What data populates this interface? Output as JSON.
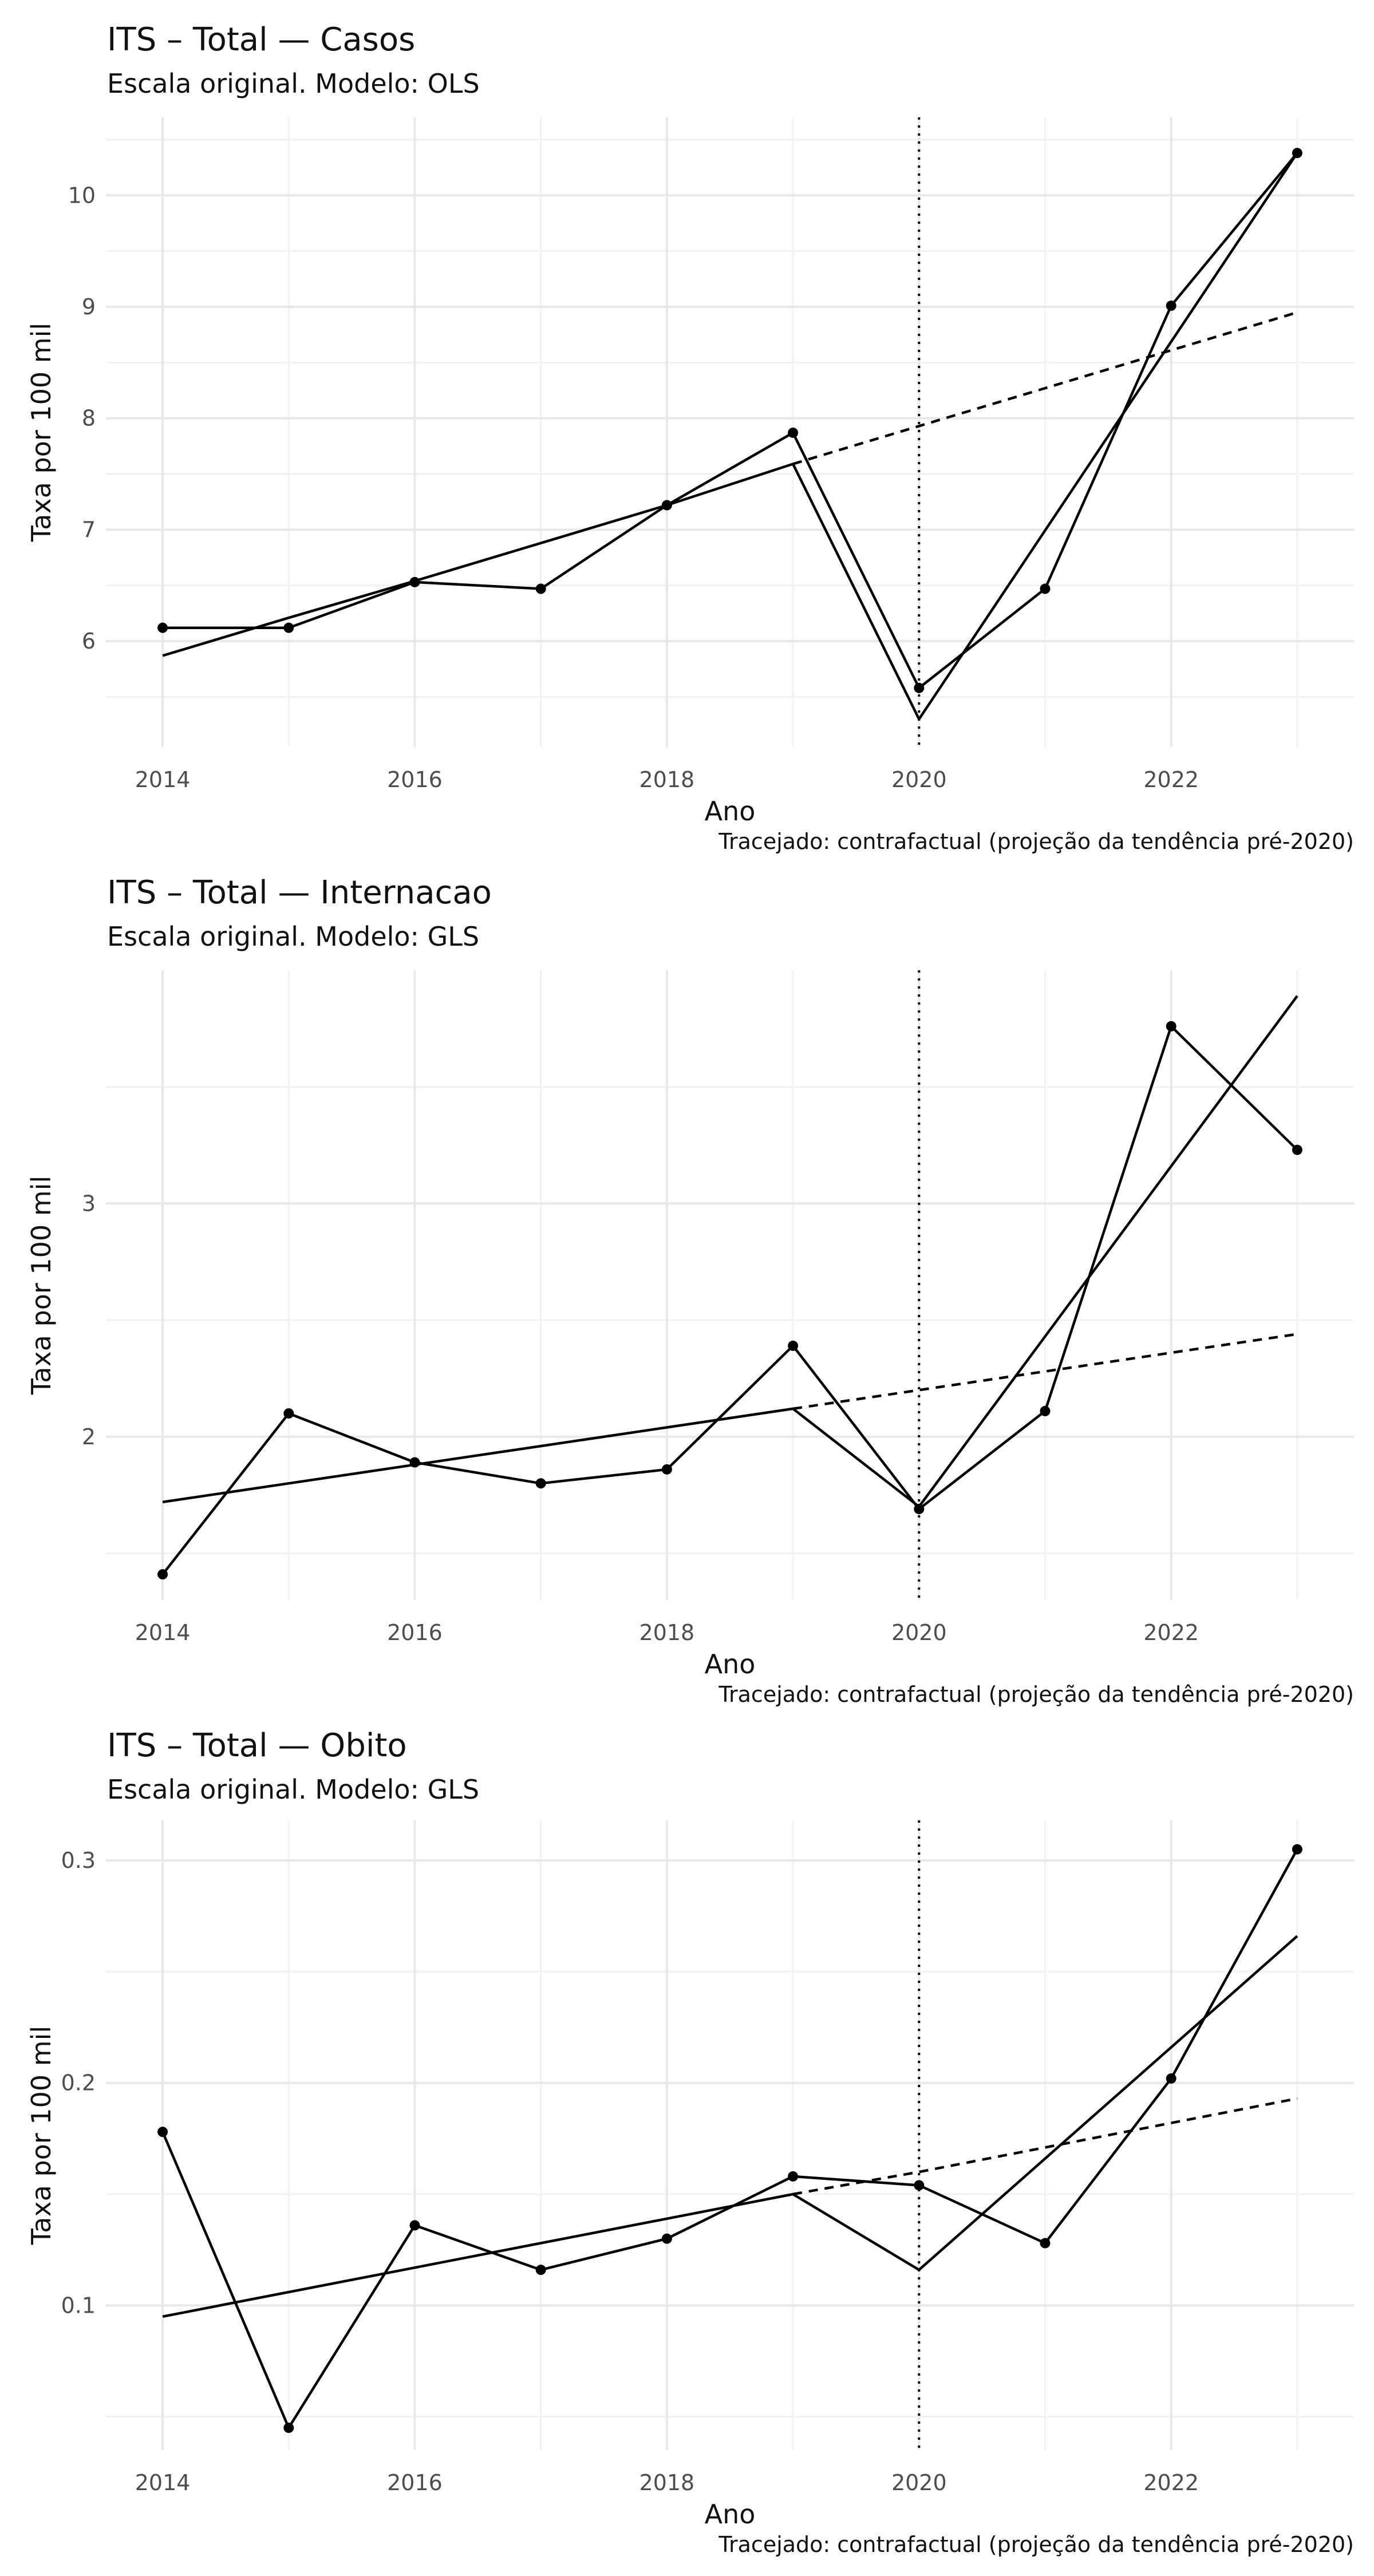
{
  "chart_data": [
    {
      "type": "line",
      "title": "ITS – Total — Casos",
      "subtitle": "Escala original. Modelo: OLS",
      "xlabel": "Ano",
      "ylabel": "Taxa por 100 mil",
      "caption": "Tracejado: contrafactual (projeção da tendência pré-2020)",
      "x": [
        2014,
        2015,
        2016,
        2017,
        2018,
        2019,
        2020,
        2021,
        2022,
        2023
      ],
      "x_ticks": [
        2014,
        2016,
        2018,
        2020,
        2022
      ],
      "y_ticks": [
        6,
        7,
        8,
        9,
        10
      ],
      "ylim": [
        5.05,
        10.7
      ],
      "xlim": [
        2013.55,
        2023.45
      ],
      "intervention_x": 2020,
      "grid": true,
      "series": [
        {
          "values": [
            6.12,
            6.12,
            6.53,
            6.47,
            7.22,
            7.87,
            5.58,
            6.47,
            9.01,
            10.38
          ],
          "markers": true
        },
        {
          "values": [
            5.87,
            6.21,
            6.54,
            6.88,
            7.22,
            7.59,
            5.3,
            null,
            null,
            10.38
          ],
          "markers": false
        },
        {
          "x": [
            2019,
            2020,
            2021,
            2022,
            2023
          ],
          "values": [
            7.59,
            7.93,
            8.27,
            8.61,
            8.95
          ],
          "style": "dashed",
          "markers": false
        }
      ]
    },
    {
      "type": "line",
      "title": "ITS – Total — Internacao",
      "subtitle": "Escala original. Modelo: GLS",
      "xlabel": "Ano",
      "ylabel": "Taxa por 100 mil",
      "caption": "Tracejado: contrafactual (projeção da tendência pré-2020)",
      "x": [
        2014,
        2015,
        2016,
        2017,
        2018,
        2019,
        2020,
        2021,
        2022,
        2023
      ],
      "x_ticks": [
        2014,
        2016,
        2018,
        2020,
        2022
      ],
      "y_ticks": [
        2,
        3
      ],
      "ylim": [
        1.3,
        4.0
      ],
      "xlim": [
        2013.55,
        2023.45
      ],
      "intervention_x": 2020,
      "grid": true,
      "series": [
        {
          "values": [
            1.41,
            2.1,
            1.89,
            1.8,
            1.86,
            2.39,
            1.69,
            2.11,
            3.76,
            3.23
          ],
          "markers": true
        },
        {
          "values": [
            1.72,
            1.8,
            1.88,
            1.96,
            2.04,
            2.12,
            1.7,
            null,
            null,
            3.89
          ],
          "markers": false
        },
        {
          "x": [
            2019,
            2020,
            2021,
            2022,
            2023
          ],
          "values": [
            2.12,
            2.2,
            2.28,
            2.36,
            2.44
          ],
          "style": "dashed",
          "markers": false
        }
      ]
    },
    {
      "type": "line",
      "title": "ITS – Total — Obito",
      "subtitle": "Escala original. Modelo: GLS",
      "xlabel": "Ano",
      "ylabel": "Taxa por 100 mil",
      "caption": "Tracejado: contrafactual (projeção da tendência pré-2020)",
      "x": [
        2014,
        2015,
        2016,
        2017,
        2018,
        2019,
        2020,
        2021,
        2022,
        2023
      ],
      "x_ticks": [
        2014,
        2016,
        2018,
        2020,
        2022
      ],
      "y_ticks": [
        0.1,
        0.2,
        0.3
      ],
      "ylim": [
        0.035,
        0.318
      ],
      "xlim": [
        2013.55,
        2023.45
      ],
      "intervention_x": 2020,
      "grid": true,
      "series": [
        {
          "values": [
            0.178,
            0.045,
            0.136,
            0.116,
            0.13,
            0.158,
            0.154,
            0.128,
            0.202,
            0.305
          ],
          "markers": true
        },
        {
          "values": [
            0.095,
            0.106,
            0.117,
            0.128,
            0.139,
            0.15,
            0.116,
            null,
            null,
            0.266
          ],
          "markers": false
        },
        {
          "x": [
            2019,
            2020,
            2021,
            2022,
            2023
          ],
          "values": [
            0.15,
            0.16,
            0.171,
            0.182,
            0.193
          ],
          "style": "dashed",
          "markers": false
        }
      ]
    }
  ]
}
